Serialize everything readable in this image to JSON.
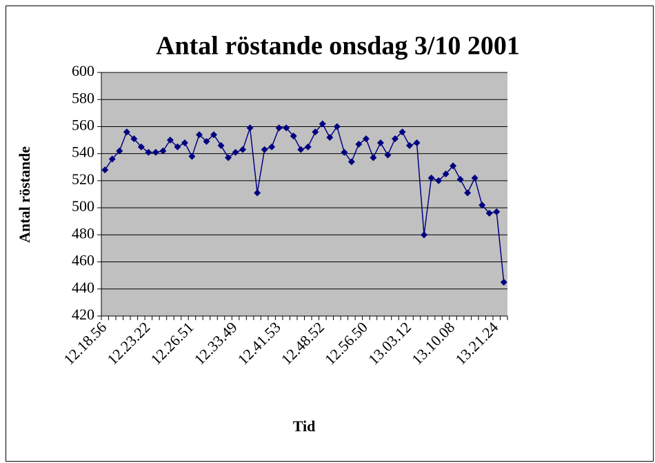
{
  "chart_data": {
    "type": "line",
    "title": "Antal röstande onsdag 3/10 2001",
    "x_label": "Tid",
    "y_label": "Antal röstande",
    "categories": [
      "12.18.56",
      null,
      null,
      null,
      null,
      null,
      "12.23.22",
      null,
      null,
      null,
      null,
      null,
      "12.26.51",
      null,
      null,
      null,
      null,
      null,
      "12.33.49",
      null,
      null,
      null,
      null,
      null,
      "12.41.53",
      null,
      null,
      null,
      null,
      null,
      "12.48.52",
      null,
      null,
      null,
      null,
      null,
      "12.56.50",
      null,
      null,
      null,
      null,
      null,
      "13.03.12",
      null,
      null,
      null,
      null,
      null,
      "13.10.08",
      null,
      null,
      null,
      null,
      null,
      "13.21.24",
      null
    ],
    "series": [
      {
        "name": "Antal röstande",
        "color": "#000080",
        "values": [
          528,
          536,
          542,
          556,
          551,
          545,
          541,
          541,
          542,
          550,
          545,
          548,
          538,
          554,
          549,
          554,
          546,
          537,
          541,
          543,
          559,
          511,
          543,
          545,
          559,
          559,
          553,
          543,
          545,
          556,
          562,
          552,
          560,
          541,
          534,
          547,
          551,
          537,
          548,
          539,
          551,
          556,
          546,
          548,
          480,
          522,
          520,
          525,
          531,
          521,
          511,
          522,
          502,
          496,
          497,
          445
        ]
      }
    ],
    "ylim": [
      420,
      600
    ],
    "yticks": [
      420,
      440,
      460,
      480,
      500,
      520,
      540,
      560,
      580,
      600
    ],
    "grid": true,
    "plot_background": "#c0c0c0"
  }
}
